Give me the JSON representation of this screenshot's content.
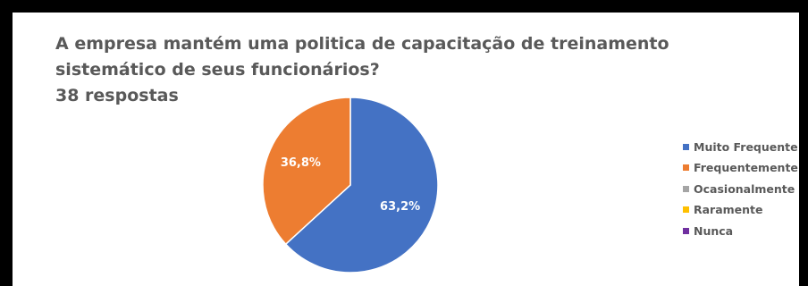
{
  "chart_data": {
    "type": "pie",
    "title": "A empresa mantém uma politica de capacitação de treinamento sistemático de seus funcionários?",
    "title_lines": [
      "A empresa mantém uma politica de capacitação de treinamento",
      "sistemático de seus funcionários?"
    ],
    "subtitle": "38 respostas",
    "categories": [
      "Muito Frequente",
      "Frequentemente",
      "Ocasionalmente",
      "Raramente",
      "Nunca"
    ],
    "values": [
      63.2,
      36.8,
      0,
      0,
      0
    ],
    "value_labels": [
      "63,2%",
      "36,8%",
      "",
      "",
      ""
    ],
    "colors": [
      "#4472C4",
      "#ED7D31",
      "#A5A5A5",
      "#FFC000",
      "#7030A0"
    ],
    "legend_position": "right"
  }
}
